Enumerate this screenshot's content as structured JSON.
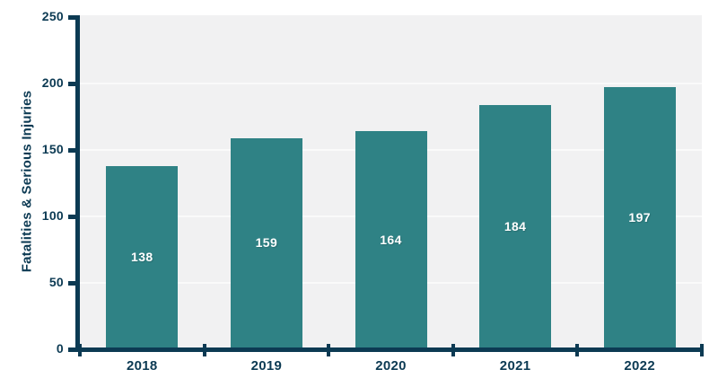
{
  "chart_data": {
    "type": "bar",
    "categories": [
      "2018",
      "2019",
      "2020",
      "2021",
      "2022"
    ],
    "values": [
      138,
      159,
      164,
      184,
      197
    ],
    "title": "",
    "xlabel": "",
    "ylabel": "Fatalities & Serious Injuries",
    "ylim": [
      0,
      250
    ],
    "yticks": [
      0,
      50,
      100,
      150,
      200,
      250
    ],
    "grid": true,
    "legend": false,
    "data_labels": true,
    "colors": {
      "bar": "#2f8285",
      "axis": "#0c3a53",
      "tick_text": "#0c3a53",
      "bar_label_text": "#ffffff",
      "plot_background": "#f1f1f2",
      "gridline": "#fafafa",
      "page_background": "#ffffff"
    }
  }
}
